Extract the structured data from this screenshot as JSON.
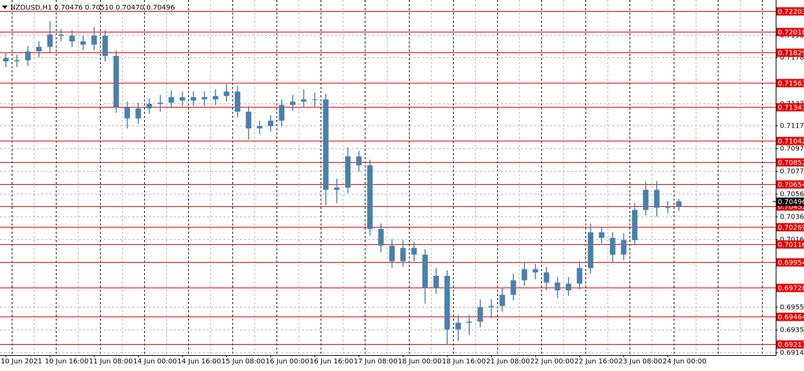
{
  "chart_data": {
    "type": "candlestick",
    "title": "NZDUSD,H1  0.70476 0.70510 0.70470 0.70496",
    "color": "#4c7fa8",
    "level_color": "#e00000",
    "ylim": [
      0.6912,
      0.723
    ],
    "yticks": [
      0.71985,
      0.71785,
      0.71375,
      0.71175,
      {
        "value": 0.7097,
        "label": "0.70970"
      },
      {
        "value": 0.7077,
        "label": "0.70770"
      },
      0.70565,
      {
        "value": 0.7036,
        "label": "0.70360"
      },
      {
        "value": 0.7016,
        "label": "0.70160"
      },
      {
        "value": 0.6955,
        "label": "0.69550"
      },
      {
        "value": 0.6935,
        "label": "0.69350"
      },
      0.69145
    ],
    "x_labels": [
      "10 Jun 2021",
      "10 Jun 16:00",
      "11 Jun 08:00",
      "14 Jun 00:00",
      "14 Jun 16:00",
      "15 Jun 08:00",
      "16 Jun 00:00",
      "16 Jun 16:00",
      "17 Jun 08:00",
      "18 Jun 00:00",
      "18 Jun 16:00",
      "21 Jun 08:00",
      "22 Jun 00:00",
      "22 Jun 16:00",
      "23 Jun 08:00",
      "24 Jun 00:00"
    ],
    "levels": [
      0.72203,
      0.72018,
      0.71829,
      0.71561,
      0.71343,
      0.71042,
      0.70852,
      0.70654,
      0.70452,
      0.70269,
      0.70116,
      0.69954,
      0.69728,
      0.69464,
      0.69217
    ],
    "last_price": 0.70496,
    "open": [
      0.7178,
      0.7175,
      0.7176,
      0.7184,
      0.7188,
      0.7199,
      0.7198,
      0.7193,
      0.719,
      0.7198,
      0.718,
      0.7134,
      0.7124,
      0.7133,
      0.7137,
      0.7138,
      0.7143,
      0.714,
      0.7143,
      0.7141,
      0.7144,
      0.7148,
      0.713,
      0.7115,
      0.7117,
      0.7122,
      0.7136,
      0.7139,
      0.7141,
      0.7141,
      0.706,
      0.7062,
      0.709,
      0.7082,
      0.7025,
      0.701,
      0.6996,
      0.7008,
      0.7002,
      0.6972,
      0.6983,
      0.6935,
      0.6941,
      0.6942,
      0.6955,
      0.6956,
      0.6966,
      0.6979,
      0.6989,
      0.6986,
      0.6977,
      0.697,
      0.6976,
      0.699,
      0.7022,
      0.7017,
      0.7002,
      0.7015,
      0.7042,
      0.706,
      0.7044,
      0.7045
    ],
    "high": [
      0.7183,
      0.7181,
      0.7189,
      0.7193,
      0.7211,
      0.7204,
      0.7203,
      0.7198,
      0.7206,
      0.7203,
      0.7185,
      0.7139,
      0.7138,
      0.7142,
      0.7145,
      0.7149,
      0.7148,
      0.7148,
      0.7148,
      0.715,
      0.7156,
      0.7153,
      0.7135,
      0.7122,
      0.7127,
      0.7141,
      0.7145,
      0.715,
      0.7147,
      0.7146,
      0.707,
      0.7098,
      0.7095,
      0.7087,
      0.703,
      0.7016,
      0.7015,
      0.7013,
      0.7007,
      0.699,
      0.6988,
      0.6948,
      0.6948,
      0.6962,
      0.6962,
      0.6972,
      0.6985,
      0.6995,
      0.6994,
      0.6991,
      0.6982,
      0.6982,
      0.6996,
      0.703,
      0.7027,
      0.7022,
      0.7021,
      0.7048,
      0.7067,
      0.7068,
      0.705,
      0.7052
    ],
    "low": [
      0.717,
      0.717,
      0.7171,
      0.7179,
      0.7183,
      0.7193,
      0.7188,
      0.7185,
      0.7185,
      0.7175,
      0.7129,
      0.7115,
      0.7119,
      0.7128,
      0.713,
      0.7133,
      0.7135,
      0.7135,
      0.7135,
      0.7136,
      0.7139,
      0.7125,
      0.7105,
      0.711,
      0.7112,
      0.7117,
      0.7131,
      0.7134,
      0.7134,
      0.7046,
      0.7048,
      0.7057,
      0.7076,
      0.7019,
      0.7004,
      0.699,
      0.6991,
      0.6996,
      0.6958,
      0.6967,
      0.6921,
      0.6925,
      0.693,
      0.6937,
      0.6945,
      0.6951,
      0.6961,
      0.6974,
      0.698,
      0.697,
      0.6963,
      0.6965,
      0.6971,
      0.6985,
      0.7012,
      0.6995,
      0.6997,
      0.701,
      0.7037,
      0.7036,
      0.7039,
      0.7041
    ],
    "close": [
      0.7175,
      0.7176,
      0.7184,
      0.7188,
      0.7199,
      0.7198,
      0.7193,
      0.719,
      0.7198,
      0.718,
      0.7134,
      0.7124,
      0.7133,
      0.7137,
      0.7138,
      0.7143,
      0.714,
      0.7143,
      0.7141,
      0.7144,
      0.7148,
      0.713,
      0.7115,
      0.7117,
      0.7122,
      0.7136,
      0.7139,
      0.7141,
      0.7141,
      0.706,
      0.7062,
      0.709,
      0.7082,
      0.7025,
      0.701,
      0.6996,
      0.7008,
      0.7002,
      0.6972,
      0.6983,
      0.6935,
      0.6941,
      0.6942,
      0.6955,
      0.6956,
      0.6966,
      0.6979,
      0.6989,
      0.6986,
      0.6977,
      0.697,
      0.6976,
      0.699,
      0.7022,
      0.7017,
      0.7002,
      0.7015,
      0.7042,
      0.706,
      0.7044,
      0.7045,
      0.70496
    ]
  }
}
